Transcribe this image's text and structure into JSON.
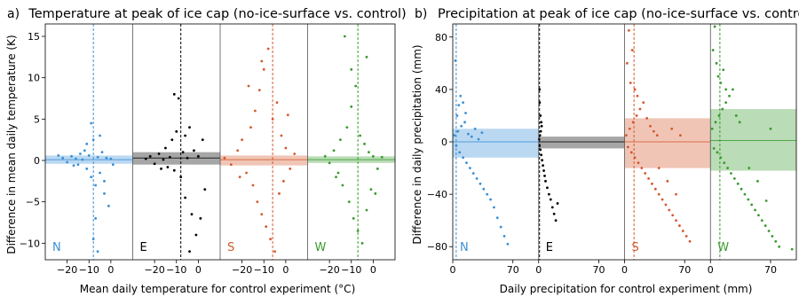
{
  "chart_data": [
    {
      "panel_label": "a)",
      "title": "Temperature at peak of ice cap (no-ice-surface vs. control)",
      "type": "scatter",
      "xlabel": "Mean daily temperature for control experiment (°C)",
      "ylabel": "Difference in mean daily temperature (K)",
      "ylim": [
        -12,
        16.5
      ],
      "yticks": [
        "−10",
        "−5",
        "0",
        "5",
        "10",
        "15"
      ],
      "ytick_values": [
        -10,
        -5,
        0,
        5,
        10,
        15
      ],
      "subpanel_xlim": [
        -30,
        10
      ],
      "subpanel_xticks": [
        "−20",
        "−10",
        "0"
      ],
      "subpanel_xtick_values": [
        -20,
        -10,
        0
      ],
      "series": [
        {
          "name": "N",
          "color": "#3a8fd6",
          "mean_control_x": -8,
          "band_low": -0.4,
          "band_high": 0.6,
          "mean_diff": 0.1,
          "points": [
            [
              -22,
              0.3
            ],
            [
              -20,
              -0.2
            ],
            [
              -18,
              0.5
            ],
            [
              -16,
              0.2
            ],
            [
              -15,
              -0.5
            ],
            [
              -14,
              0.8
            ],
            [
              -13,
              0.1
            ],
            [
              -12,
              1.2
            ],
            [
              -11,
              -1.0
            ],
            [
              -10,
              0.6
            ],
            [
              -9,
              -2.0
            ],
            [
              -8,
              2.5
            ],
            [
              -7,
              -3.0
            ],
            [
              -6,
              0.4
            ],
            [
              -5,
              -1.5
            ],
            [
              -4,
              1.0
            ],
            [
              -3,
              -4.0
            ],
            [
              -2,
              0.3
            ],
            [
              -1,
              -5.5
            ],
            [
              0,
              0.2
            ],
            [
              -9,
              4.5
            ],
            [
              -7,
              -7.0
            ],
            [
              -6,
              -11.0
            ],
            [
              -8,
              -9.5
            ],
            [
              -24,
              0.6
            ],
            [
              -17,
              -0.6
            ],
            [
              -11,
              2.0
            ],
            [
              -5,
              3.0
            ],
            [
              -3,
              -2.5
            ],
            [
              1,
              -0.5
            ]
          ]
        },
        {
          "name": "E",
          "color": "#000000",
          "mean_control_x": -8,
          "band_low": -0.5,
          "band_high": 1.0,
          "mean_diff": 0.3,
          "points": [
            [
              -22,
              0.5
            ],
            [
              -20,
              -0.4
            ],
            [
              -18,
              0.8
            ],
            [
              -16,
              0.1
            ],
            [
              -15,
              1.5
            ],
            [
              -14,
              -0.8
            ],
            [
              -13,
              0.4
            ],
            [
              -12,
              2.5
            ],
            [
              -11,
              -1.2
            ],
            [
              -10,
              3.5
            ],
            [
              -9,
              7.5
            ],
            [
              -8,
              -2.0
            ],
            [
              -7,
              1.0
            ],
            [
              -6,
              -4.5
            ],
            [
              -5,
              0.3
            ],
            [
              -4,
              4.0
            ],
            [
              -3,
              -6.5
            ],
            [
              -2,
              1.2
            ],
            [
              -1,
              -9.0
            ],
            [
              0,
              0.5
            ],
            [
              2,
              2.5
            ],
            [
              3,
              -3.5
            ],
            [
              -11,
              8.0
            ],
            [
              -4,
              -11.0
            ],
            [
              -6,
              3.0
            ],
            [
              -17,
              -1.0
            ],
            [
              -24,
              0.2
            ],
            [
              1,
              -7.0
            ]
          ]
        },
        {
          "name": "S",
          "color": "#d4582d",
          "mean_control_x": -6,
          "band_low": -0.6,
          "band_high": 0.6,
          "mean_diff": 0.1,
          "points": [
            [
              -28,
              0.3
            ],
            [
              -25,
              -0.5
            ],
            [
              -22,
              1.2
            ],
            [
              -20,
              2.5
            ],
            [
              -18,
              -1.5
            ],
            [
              -16,
              4.0
            ],
            [
              -15,
              -3.0
            ],
            [
              -14,
              6.0
            ],
            [
              -13,
              -5.0
            ],
            [
              -12,
              8.5
            ],
            [
              -11,
              -6.5
            ],
            [
              -10,
              11.0
            ],
            [
              -9,
              -8.0
            ],
            [
              -8,
              13.5
            ],
            [
              -7,
              -9.5
            ],
            [
              -6,
              5.0
            ],
            [
              -5,
              -11.0
            ],
            [
              -4,
              7.0
            ],
            [
              -3,
              -4.0
            ],
            [
              -2,
              3.0
            ],
            [
              -1,
              -2.5
            ],
            [
              0,
              1.5
            ],
            [
              2,
              -1.0
            ],
            [
              4,
              0.8
            ],
            [
              -17,
              9.0
            ],
            [
              -11,
              12.0
            ],
            [
              -21,
              -2.0
            ],
            [
              1,
              5.5
            ]
          ]
        },
        {
          "name": "W",
          "color": "#3a9a2f",
          "mean_control_x": -7,
          "band_low": -0.3,
          "band_high": 0.5,
          "mean_diff": 0.1,
          "points": [
            [
              -22,
              0.5
            ],
            [
              -20,
              -0.3
            ],
            [
              -18,
              1.2
            ],
            [
              -16,
              -1.5
            ],
            [
              -15,
              2.5
            ],
            [
              -14,
              -3.0
            ],
            [
              -13,
              15.0
            ],
            [
              -12,
              4.0
            ],
            [
              -11,
              -5.0
            ],
            [
              -10,
              6.5
            ],
            [
              -9,
              -7.0
            ],
            [
              -8,
              9.0
            ],
            [
              -7,
              -8.5
            ],
            [
              -6,
              3.0
            ],
            [
              -5,
              -10.0
            ],
            [
              -4,
              2.0
            ],
            [
              -3,
              -6.0
            ],
            [
              -2,
              1.0
            ],
            [
              -1,
              -3.5
            ],
            [
              0,
              0.5
            ],
            [
              2,
              -1.0
            ],
            [
              4,
              0.4
            ],
            [
              -10,
              11.0
            ],
            [
              -3,
              12.5
            ],
            [
              -17,
              -2.0
            ],
            [
              1,
              -4.0
            ]
          ]
        }
      ]
    },
    {
      "panel_label": "b)",
      "title": "Precipitation at peak of ice cap (no-ice-surface vs. control)",
      "type": "scatter",
      "xlabel": "Daily precipitation for control experiment (mm)",
      "ylabel": "Difference in daily precipitation (mm)",
      "ylim": [
        -90,
        90
      ],
      "yticks": [
        "−80",
        "−40",
        "0",
        "40",
        "80"
      ],
      "ytick_values": [
        -80,
        -40,
        0,
        40,
        80
      ],
      "subpanel_xlim": [
        0,
        100
      ],
      "subpanel_xticks": [
        "0",
        "70"
      ],
      "subpanel_xtick_values": [
        0,
        70
      ],
      "series": [
        {
          "name": "N",
          "color": "#3a8fd6",
          "mean_control_x": 4,
          "band_low": -12,
          "band_high": 10,
          "mean_diff": 0,
          "points": [
            [
              2,
              5
            ],
            [
              4,
              -3
            ],
            [
              6,
              8
            ],
            [
              8,
              -8
            ],
            [
              10,
              12
            ],
            [
              12,
              -12
            ],
            [
              14,
              15
            ],
            [
              16,
              -16
            ],
            [
              18,
              6
            ],
            [
              20,
              -20
            ],
            [
              22,
              4
            ],
            [
              24,
              -24
            ],
            [
              26,
              10
            ],
            [
              28,
              -28
            ],
            [
              30,
              2
            ],
            [
              32,
              -32
            ],
            [
              34,
              7
            ],
            [
              36,
              -36
            ],
            [
              40,
              -40
            ],
            [
              44,
              -44
            ],
            [
              48,
              -50
            ],
            [
              52,
              -58
            ],
            [
              56,
              -65
            ],
            [
              60,
              -72
            ],
            [
              64,
              -78
            ],
            [
              5,
              20
            ],
            [
              7,
              28
            ],
            [
              9,
              35
            ],
            [
              3,
              62
            ],
            [
              12,
              30
            ],
            [
              15,
              22
            ]
          ]
        },
        {
          "name": "E",
          "color": "#000000",
          "mean_control_x": 1,
          "band_low": -5,
          "band_high": 4,
          "mean_diff": 0,
          "points": [
            [
              0.5,
              2
            ],
            [
              1,
              -3
            ],
            [
              1.5,
              5
            ],
            [
              2,
              -6
            ],
            [
              2.5,
              8
            ],
            [
              3,
              -10
            ],
            [
              3.5,
              12
            ],
            [
              4,
              -14
            ],
            [
              5,
              -18
            ],
            [
              6,
              -22
            ],
            [
              7,
              -26
            ],
            [
              8,
              -30
            ],
            [
              10,
              -35
            ],
            [
              12,
              -40
            ],
            [
              14,
              -44
            ],
            [
              16,
              -50
            ],
            [
              18,
              -55
            ],
            [
              20,
              -60
            ],
            [
              22,
              -47
            ],
            [
              1,
              40
            ],
            [
              1.2,
              30
            ],
            [
              2,
              20
            ],
            [
              3,
              15
            ]
          ]
        },
        {
          "name": "S",
          "color": "#d4582d",
          "mean_control_x": 11,
          "band_low": -20,
          "band_high": 18,
          "mean_diff": 0,
          "points": [
            [
              2,
              5
            ],
            [
              4,
              -4
            ],
            [
              6,
              10
            ],
            [
              8,
              -8
            ],
            [
              10,
              15
            ],
            [
              12,
              -12
            ],
            [
              14,
              20
            ],
            [
              16,
              -16
            ],
            [
              18,
              25
            ],
            [
              20,
              -20
            ],
            [
              22,
              30
            ],
            [
              24,
              -24
            ],
            [
              26,
              18
            ],
            [
              28,
              -28
            ],
            [
              30,
              12
            ],
            [
              32,
              -32
            ],
            [
              34,
              8
            ],
            [
              36,
              -36
            ],
            [
              38,
              5
            ],
            [
              40,
              -40
            ],
            [
              44,
              -44
            ],
            [
              48,
              -48
            ],
            [
              52,
              -52
            ],
            [
              56,
              -56
            ],
            [
              60,
              -60
            ],
            [
              64,
              -64
            ],
            [
              68,
              -68
            ],
            [
              72,
              -72
            ],
            [
              76,
              -76
            ],
            [
              3,
              60
            ],
            [
              5,
              85
            ],
            [
              7,
              45
            ],
            [
              9,
              70
            ],
            [
              12,
              40
            ],
            [
              15,
              35
            ],
            [
              50,
              -30
            ],
            [
              40,
              -20
            ],
            [
              60,
              -40
            ],
            [
              55,
              10
            ],
            [
              65,
              5
            ]
          ]
        },
        {
          "name": "W",
          "color": "#3a9a2f",
          "mean_control_x": 11,
          "band_low": -22,
          "band_high": 25,
          "mean_diff": 1,
          "points": [
            [
              2,
              10
            ],
            [
              4,
              -5
            ],
            [
              6,
              15
            ],
            [
              8,
              -8
            ],
            [
              10,
              20
            ],
            [
              12,
              -12
            ],
            [
              14,
              25
            ],
            [
              16,
              -16
            ],
            [
              18,
              30
            ],
            [
              20,
              -20
            ],
            [
              22,
              35
            ],
            [
              24,
              -24
            ],
            [
              26,
              40
            ],
            [
              28,
              -28
            ],
            [
              30,
              20
            ],
            [
              32,
              -32
            ],
            [
              34,
              15
            ],
            [
              36,
              -36
            ],
            [
              40,
              -40
            ],
            [
              44,
              -44
            ],
            [
              48,
              -48
            ],
            [
              52,
              -52
            ],
            [
              56,
              -56
            ],
            [
              60,
              -60
            ],
            [
              64,
              -64
            ],
            [
              68,
              -68
            ],
            [
              72,
              -72
            ],
            [
              76,
              -76
            ],
            [
              80,
              -80
            ],
            [
              3,
              70
            ],
            [
              5,
              88
            ],
            [
              7,
              60
            ],
            [
              9,
              50
            ],
            [
              12,
              45
            ],
            [
              15,
              55
            ],
            [
              18,
              40
            ],
            [
              45,
              -20
            ],
            [
              55,
              -30
            ],
            [
              65,
              -45
            ],
            [
              70,
              10
            ],
            [
              95,
              -82
            ]
          ]
        }
      ]
    }
  ]
}
